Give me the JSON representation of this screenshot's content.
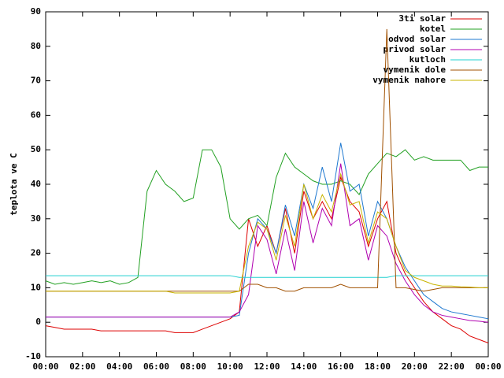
{
  "chart_data": {
    "type": "line",
    "ylabel": "teplota ve C",
    "x": [
      0,
      0.5,
      1,
      1.5,
      2,
      2.5,
      3,
      3.5,
      4,
      4.5,
      5,
      5.5,
      6,
      6.5,
      7,
      7.5,
      8,
      8.5,
      9,
      9.5,
      10,
      10.5,
      11,
      11.5,
      12,
      12.5,
      13,
      13.5,
      14,
      14.5,
      15,
      15.5,
      16,
      16.5,
      17,
      17.5,
      18,
      18.5,
      19,
      19.5,
      20,
      20.5,
      21,
      21.5,
      22,
      22.5,
      23,
      23.5,
      24
    ],
    "xlim": [
      0,
      24
    ],
    "xticks": [
      {
        "value": 0,
        "label": "00:00"
      },
      {
        "value": 2,
        "label": "02:00"
      },
      {
        "value": 4,
        "label": "04:00"
      },
      {
        "value": 6,
        "label": "06:00"
      },
      {
        "value": 8,
        "label": "08:00"
      },
      {
        "value": 10,
        "label": "10:00"
      },
      {
        "value": 12,
        "label": "12:00"
      },
      {
        "value": 14,
        "label": "14:00"
      },
      {
        "value": 16,
        "label": "16:00"
      },
      {
        "value": 18,
        "label": "18:00"
      },
      {
        "value": 20,
        "label": "20:00"
      },
      {
        "value": 22,
        "label": "22:00"
      },
      {
        "value": 24,
        "label": "00:00"
      }
    ],
    "ylim": [
      -10,
      90
    ],
    "yticks": [
      -10,
      0,
      10,
      20,
      30,
      40,
      50,
      60,
      70,
      80,
      90
    ],
    "legend": "top-right",
    "series": [
      {
        "name": "3ti solar",
        "color": "#dd0000",
        "values": [
          -1,
          -1.5,
          -2,
          -2,
          -2,
          -2,
          -2.5,
          -2.5,
          -2.5,
          -2.5,
          -2.5,
          -2.5,
          -2.5,
          -2.5,
          -3,
          -3,
          -3,
          -2,
          -1,
          0,
          1,
          3,
          30,
          22,
          28,
          20,
          33,
          20,
          38,
          30,
          35,
          30,
          42,
          35,
          32,
          22,
          30,
          35,
          20,
          14,
          10,
          6,
          3,
          1,
          -1,
          -2,
          -4,
          -5,
          -6
        ]
      },
      {
        "name": "kotel",
        "color": "#22a022",
        "values": [
          12,
          11,
          11.5,
          11,
          11.5,
          12,
          11.5,
          12,
          11,
          11.5,
          13,
          38,
          44,
          40,
          38,
          35,
          36,
          50,
          50,
          45,
          30,
          27,
          30,
          31,
          28,
          42,
          49,
          45,
          43,
          41,
          40,
          40,
          41,
          40,
          37,
          43,
          46,
          49,
          48,
          50,
          47,
          48,
          47,
          47,
          47,
          47,
          44,
          45,
          45
        ]
      },
      {
        "name": "odvod solar",
        "color": "#1e78d0",
        "values": [
          1.5,
          1.5,
          1.5,
          1.5,
          1.5,
          1.5,
          1.5,
          1.5,
          1.5,
          1.5,
          1.5,
          1.5,
          1.5,
          1.5,
          1.5,
          1.5,
          1.5,
          1.5,
          1.5,
          1.5,
          1.5,
          2,
          20,
          30,
          27,
          20,
          34,
          25,
          40,
          33,
          45,
          35,
          52,
          38,
          40,
          25,
          35,
          30,
          22,
          16,
          12,
          8,
          6,
          4,
          3,
          2.5,
          2,
          1.5,
          1
        ]
      },
      {
        "name": "privod solar",
        "color": "#b000b0",
        "values": [
          1.5,
          1.5,
          1.5,
          1.5,
          1.5,
          1.5,
          1.5,
          1.5,
          1.5,
          1.5,
          1.5,
          1.5,
          1.5,
          1.5,
          1.5,
          1.5,
          1.5,
          1.5,
          1.5,
          1.5,
          1.5,
          3,
          8,
          28,
          24,
          14,
          27,
          15,
          35,
          23,
          33,
          28,
          46,
          28,
          30,
          18,
          28,
          25,
          17,
          12,
          8,
          5,
          3,
          2,
          1.5,
          1,
          0.5,
          0.3,
          0
        ]
      },
      {
        "name": "kutloch",
        "color": "#22d0d0",
        "values": [
          13.5,
          13.5,
          13.5,
          13.5,
          13.5,
          13.5,
          13.5,
          13.5,
          13.5,
          13.5,
          13.5,
          13.5,
          13.5,
          13.5,
          13.5,
          13.5,
          13.5,
          13.5,
          13.5,
          13.5,
          13.5,
          13,
          13,
          13,
          13,
          13,
          13,
          13,
          13,
          13,
          13,
          13,
          13,
          13,
          13,
          13,
          13,
          13,
          13.5,
          13.5,
          13.5,
          13.5,
          13.5,
          13.5,
          13.5,
          13.5,
          13.5,
          13.5,
          13.5
        ]
      },
      {
        "name": "vymenik dole",
        "color": "#a05000",
        "values": [
          9,
          9,
          9,
          9,
          9,
          9,
          9,
          9,
          9,
          9,
          9,
          9,
          9,
          9,
          9,
          9,
          9,
          9,
          9,
          9,
          9,
          9,
          11,
          11,
          10,
          10,
          9,
          9,
          10,
          10,
          10,
          10,
          11,
          10,
          10,
          10,
          10,
          85,
          10,
          10,
          9.5,
          9,
          9.5,
          10,
          10,
          10,
          10,
          10,
          10
        ]
      },
      {
        "name": "vymenik nahore",
        "color": "#c8b400",
        "values": [
          9,
          9,
          9,
          9,
          9,
          9,
          9,
          9,
          9,
          9,
          9,
          9,
          9,
          9,
          8.5,
          8.5,
          8.5,
          8.5,
          8.5,
          8.5,
          8.5,
          9,
          22,
          29,
          27,
          18,
          31,
          22,
          40,
          30,
          37,
          32,
          43,
          34,
          35,
          23,
          32,
          30,
          22,
          15,
          13,
          12,
          11,
          10.5,
          10.5,
          10.3,
          10.2,
          10,
          10
        ]
      }
    ]
  }
}
